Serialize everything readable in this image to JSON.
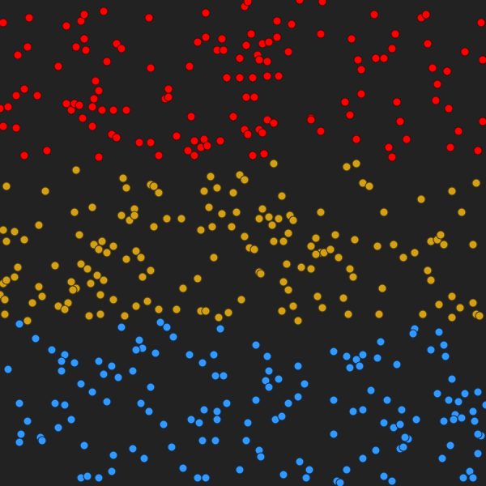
{
  "scene": {
    "background": "#222222",
    "palette": {
      "red": {
        "fill": "#ff0000",
        "stroke": "#4a0a0a"
      },
      "gold": {
        "fill": "#d4a017",
        "stroke": "#4a3a10"
      },
      "blue": {
        "fill": "#3399ff",
        "stroke": "#12304f"
      }
    }
  }
}
